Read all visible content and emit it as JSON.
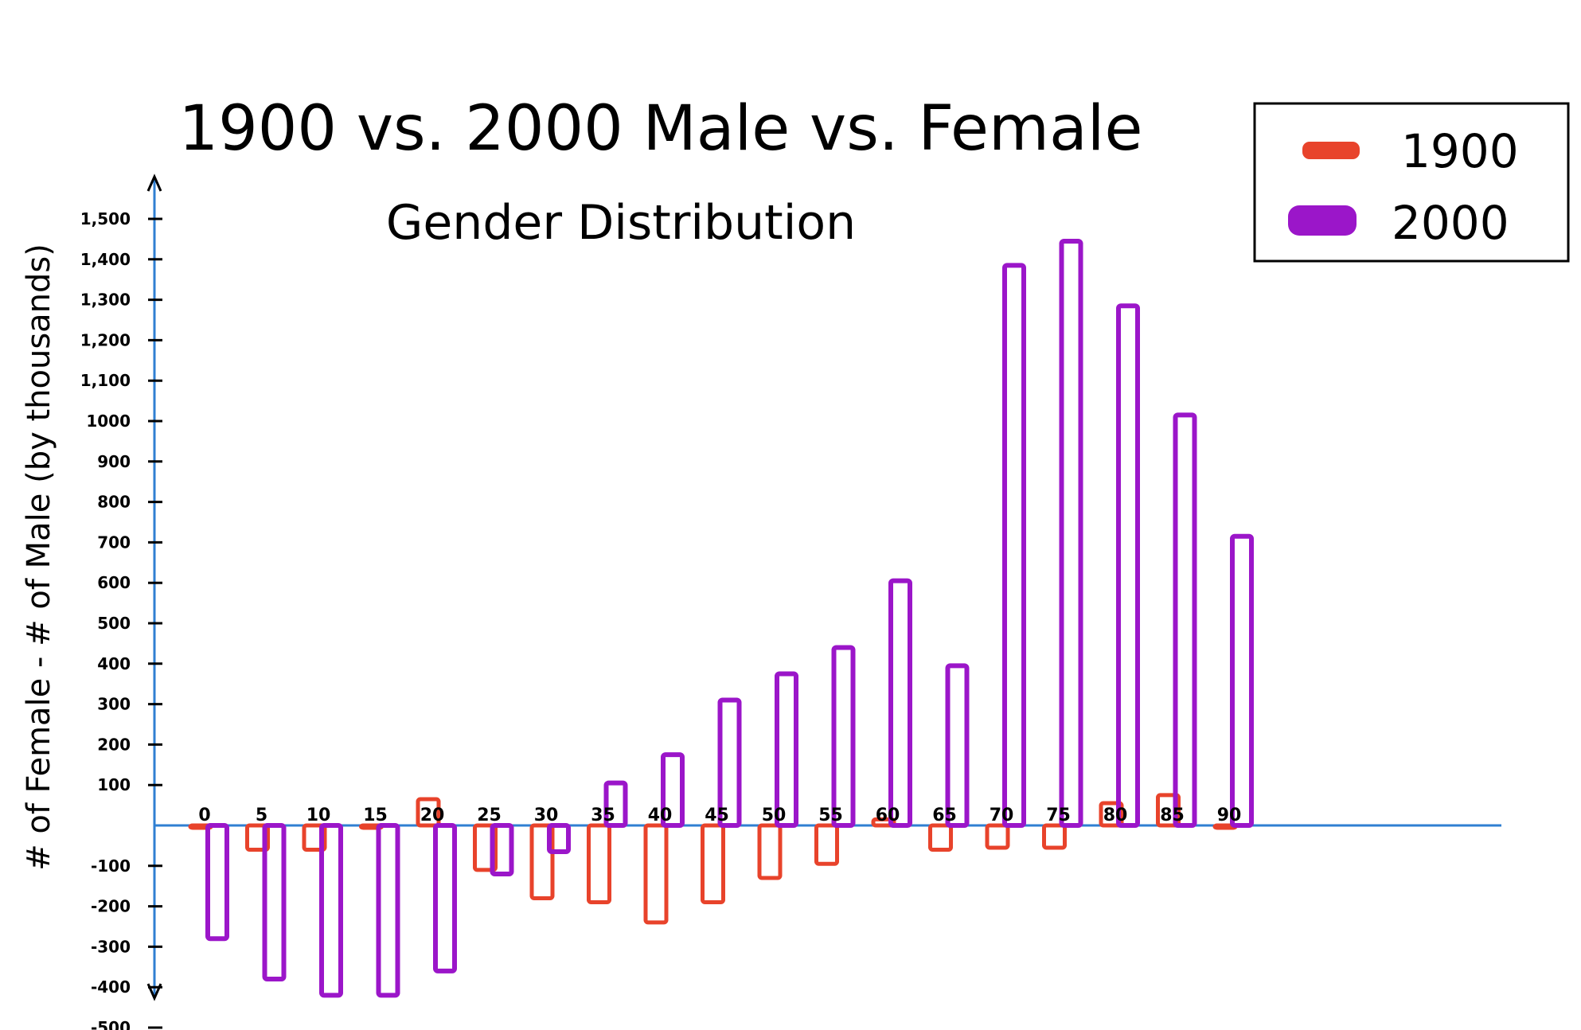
{
  "colors": {
    "series_1900": "#e8432b",
    "series_2000": "#9b16c9",
    "axis": "#2f7fd2",
    "ink": "#000000"
  },
  "chart_data": {
    "type": "bar",
    "title": "1900 vs. 2000 Male vs. Female",
    "subtitle": "Gender Distribution",
    "ylabel": "# of Female - # of Male (by thousands)",
    "xlabel": "",
    "categories": [
      "0",
      "5",
      "10",
      "15",
      "20",
      "25",
      "30",
      "35",
      "40",
      "45",
      "50",
      "55",
      "60",
      "65",
      "70",
      "75",
      "80",
      "85",
      "90"
    ],
    "y_ticks": [
      {
        "value": 1500,
        "label": "1,500"
      },
      {
        "value": 1400,
        "label": "1,400"
      },
      {
        "value": 1300,
        "label": "1,300"
      },
      {
        "value": 1200,
        "label": "1,200"
      },
      {
        "value": 1100,
        "label": "1,100"
      },
      {
        "value": 1000,
        "label": "1000"
      },
      {
        "value": 900,
        "label": "900"
      },
      {
        "value": 800,
        "label": "800"
      },
      {
        "value": 700,
        "label": "700"
      },
      {
        "value": 600,
        "label": "600"
      },
      {
        "value": 500,
        "label": "500"
      },
      {
        "value": 400,
        "label": "400"
      },
      {
        "value": 300,
        "label": "300"
      },
      {
        "value": 200,
        "label": "200"
      },
      {
        "value": 100,
        "label": "100"
      },
      {
        "value": -100,
        "label": "-100"
      },
      {
        "value": -200,
        "label": "-200"
      },
      {
        "value": -300,
        "label": "-300"
      },
      {
        "value": -400,
        "label": "-400"
      },
      {
        "value": -500,
        "label": "-500"
      }
    ],
    "ylim": [
      -520,
      1560
    ],
    "series": [
      {
        "name": "1900",
        "values": [
          -5,
          -60,
          -60,
          -5,
          65,
          -110,
          -180,
          -190,
          -240,
          -190,
          -130,
          -95,
          15,
          -60,
          -55,
          -55,
          55,
          75,
          -5
        ]
      },
      {
        "name": "2000",
        "values": [
          -280,
          -380,
          -420,
          -420,
          -360,
          -120,
          -65,
          105,
          175,
          310,
          375,
          440,
          605,
          395,
          1385,
          1445,
          1285,
          1015,
          715
        ]
      }
    ],
    "legend": {
      "position": "top-right",
      "entries": [
        "1900",
        "2000"
      ]
    },
    "grid": false
  }
}
